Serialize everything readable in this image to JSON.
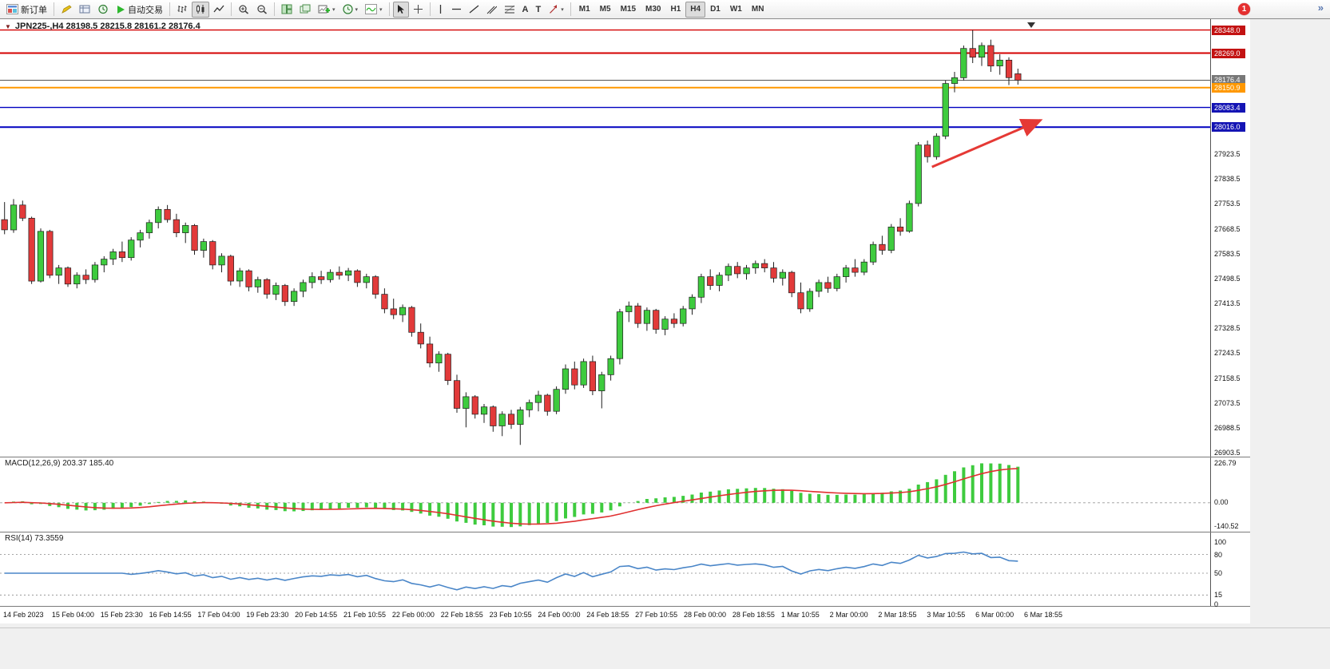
{
  "toolbar": {
    "new_order": "新订单",
    "autotrading": "自动交易",
    "timeframes": [
      "M1",
      "M5",
      "M15",
      "M30",
      "H1",
      "H4",
      "D1",
      "W1",
      "MN"
    ],
    "active_timeframe": "H4",
    "badge": "1"
  },
  "icons": {
    "one_click": "▼",
    "caret": "▾",
    "overflow": "»",
    "text_tool": "A",
    "label_tool": "T"
  },
  "chart": {
    "title": "JPN225-,H4 28198.5 28215.8 28161.2 28176.4"
  },
  "colors": {
    "bull": "#3ecb3e",
    "bear": "#e23a3a",
    "wick": "#1f1f1f"
  },
  "chart_data": {
    "type": "candlestick",
    "symbol": "JPN225-",
    "timeframe": "H4",
    "current_bar": {
      "open": 28198.5,
      "high": 28215.8,
      "low": 28161.2,
      "close": 28176.4
    },
    "price_axis": {
      "min": 26890,
      "max": 28385,
      "ticks": [
        27923.5,
        27838.5,
        27753.5,
        27668.5,
        27583.5,
        27498.5,
        27413.5,
        27328.5,
        27243.5,
        27158.5,
        27073.5,
        26988.5,
        26903.5
      ]
    },
    "hlines": [
      {
        "price": 28348.0,
        "label": "28348.0",
        "color": "#d40000",
        "badge": "#c31212",
        "width": 1.4,
        "name": "resistance-upper"
      },
      {
        "price": 28269.0,
        "label": "28269.0",
        "color": "#d40000",
        "badge": "#c31212",
        "width": 2,
        "name": "resistance-lower"
      },
      {
        "price": 28176.4,
        "label": "28176.4",
        "color": "#555555",
        "badge": "#787878",
        "width": 1.1,
        "name": "bid-price"
      },
      {
        "price": 28150.9,
        "label": "28150.9",
        "color": "#ff9800",
        "badge": "#ff9800",
        "width": 2,
        "name": "pivot"
      },
      {
        "price": 28083.4,
        "label": "28083.4",
        "color": "#0000c0",
        "badge": "#1414b4",
        "width": 1.4,
        "name": "support-upper"
      },
      {
        "price": 28016.0,
        "label": "28016.0",
        "color": "#0000c0",
        "badge": "#1414b4",
        "width": 2,
        "name": "support-lower"
      }
    ],
    "arrow": {
      "from_index": 102.5,
      "from_price": 27880,
      "to_index": 114.5,
      "to_price": 28040,
      "color": "#e53935"
    },
    "candles": [
      [
        27700,
        27760,
        27650,
        27665
      ],
      [
        27665,
        27770,
        27655,
        27750
      ],
      [
        27750,
        27765,
        27695,
        27705
      ],
      [
        27705,
        27710,
        27480,
        27490
      ],
      [
        27490,
        27670,
        27485,
        27660
      ],
      [
        27660,
        27665,
        27500,
        27510
      ],
      [
        27510,
        27545,
        27480,
        27535
      ],
      [
        27535,
        27540,
        27470,
        27480
      ],
      [
        27480,
        27520,
        27465,
        27510
      ],
      [
        27510,
        27530,
        27480,
        27495
      ],
      [
        27495,
        27555,
        27485,
        27545
      ],
      [
        27545,
        27575,
        27520,
        27565
      ],
      [
        27565,
        27600,
        27545,
        27590
      ],
      [
        27590,
        27625,
        27555,
        27570
      ],
      [
        27570,
        27640,
        27560,
        27630
      ],
      [
        27630,
        27665,
        27605,
        27655
      ],
      [
        27655,
        27700,
        27635,
        27690
      ],
      [
        27690,
        27745,
        27670,
        27735
      ],
      [
        27735,
        27750,
        27690,
        27700
      ],
      [
        27700,
        27720,
        27640,
        27655
      ],
      [
        27655,
        27690,
        27620,
        27680
      ],
      [
        27680,
        27685,
        27580,
        27595
      ],
      [
        27595,
        27635,
        27570,
        27625
      ],
      [
        27625,
        27630,
        27530,
        27545
      ],
      [
        27545,
        27585,
        27520,
        27575
      ],
      [
        27575,
        27580,
        27475,
        27490
      ],
      [
        27490,
        27535,
        27470,
        27525
      ],
      [
        27525,
        27530,
        27455,
        27470
      ],
      [
        27470,
        27505,
        27450,
        27495
      ],
      [
        27495,
        27500,
        27430,
        27445
      ],
      [
        27445,
        27485,
        27425,
        27475
      ],
      [
        27475,
        27480,
        27405,
        27420
      ],
      [
        27420,
        27465,
        27405,
        27455
      ],
      [
        27455,
        27495,
        27435,
        27485
      ],
      [
        27485,
        27520,
        27465,
        27505
      ],
      [
        27505,
        27525,
        27480,
        27495
      ],
      [
        27495,
        27530,
        27485,
        27520
      ],
      [
        27520,
        27540,
        27495,
        27510
      ],
      [
        27510,
        27535,
        27490,
        27525
      ],
      [
        27525,
        27530,
        27470,
        27485
      ],
      [
        27485,
        27515,
        27465,
        27505
      ],
      [
        27505,
        27510,
        27430,
        27445
      ],
      [
        27445,
        27465,
        27380,
        27395
      ],
      [
        27395,
        27430,
        27360,
        27375
      ],
      [
        27375,
        27410,
        27350,
        27400
      ],
      [
        27400,
        27405,
        27300,
        27315
      ],
      [
        27315,
        27345,
        27260,
        27275
      ],
      [
        27275,
        27300,
        27195,
        27210
      ],
      [
        27210,
        27250,
        27180,
        27240
      ],
      [
        27240,
        27245,
        27135,
        27150
      ],
      [
        27150,
        27170,
        27040,
        27055
      ],
      [
        27055,
        27110,
        26990,
        27095
      ],
      [
        27095,
        27100,
        27020,
        27035
      ],
      [
        27035,
        27070,
        27005,
        27060
      ],
      [
        27060,
        27065,
        26975,
        26995
      ],
      [
        26995,
        27045,
        26960,
        27035
      ],
      [
        27035,
        27050,
        26985,
        27000
      ],
      [
        27000,
        27060,
        26930,
        27050
      ],
      [
        27050,
        27085,
        27025,
        27075
      ],
      [
        27075,
        27115,
        27045,
        27100
      ],
      [
        27100,
        27105,
        27030,
        27045
      ],
      [
        27045,
        27130,
        27035,
        27120
      ],
      [
        27120,
        27205,
        27105,
        27190
      ],
      [
        27190,
        27215,
        27120,
        27135
      ],
      [
        27135,
        27225,
        27125,
        27215
      ],
      [
        27215,
        27235,
        27100,
        27115
      ],
      [
        27115,
        27180,
        27055,
        27170
      ],
      [
        27170,
        27235,
        27150,
        27225
      ],
      [
        27225,
        27395,
        27205,
        27385
      ],
      [
        27385,
        27420,
        27350,
        27405
      ],
      [
        27405,
        27415,
        27330,
        27345
      ],
      [
        27345,
        27400,
        27320,
        27390
      ],
      [
        27390,
        27395,
        27310,
        27325
      ],
      [
        27325,
        27370,
        27305,
        27360
      ],
      [
        27360,
        27380,
        27330,
        27345
      ],
      [
        27345,
        27405,
        27335,
        27395
      ],
      [
        27395,
        27445,
        27375,
        27435
      ],
      [
        27435,
        27515,
        27415,
        27505
      ],
      [
        27505,
        27530,
        27460,
        27475
      ],
      [
        27475,
        27520,
        27455,
        27510
      ],
      [
        27510,
        27550,
        27490,
        27540
      ],
      [
        27540,
        27555,
        27500,
        27515
      ],
      [
        27515,
        27545,
        27495,
        27535
      ],
      [
        27535,
        27560,
        27515,
        27550
      ],
      [
        27550,
        27565,
        27520,
        27535
      ],
      [
        27535,
        27555,
        27485,
        27500
      ],
      [
        27500,
        27530,
        27475,
        27520
      ],
      [
        27520,
        27525,
        27435,
        27450
      ],
      [
        27450,
        27485,
        27380,
        27395
      ],
      [
        27395,
        27465,
        27385,
        27455
      ],
      [
        27455,
        27495,
        27435,
        27485
      ],
      [
        27485,
        27505,
        27450,
        27465
      ],
      [
        27465,
        27515,
        27455,
        27505
      ],
      [
        27505,
        27545,
        27485,
        27535
      ],
      [
        27535,
        27565,
        27505,
        27520
      ],
      [
        27520,
        27565,
        27510,
        27555
      ],
      [
        27555,
        27625,
        27545,
        27615
      ],
      [
        27615,
        27645,
        27580,
        27595
      ],
      [
        27595,
        27685,
        27585,
        27675
      ],
      [
        27675,
        27705,
        27645,
        27660
      ],
      [
        27660,
        27765,
        27655,
        27755
      ],
      [
        27755,
        27965,
        27745,
        27955
      ],
      [
        27955,
        27970,
        27895,
        27915
      ],
      [
        27915,
        27995,
        27905,
        27985
      ],
      [
        27985,
        28175,
        27975,
        28165
      ],
      [
        28165,
        28205,
        28135,
        28185
      ],
      [
        28185,
        28295,
        28175,
        28285
      ],
      [
        28285,
        28348,
        28235,
        28255
      ],
      [
        28255,
        28305,
        28225,
        28295
      ],
      [
        28295,
        28315,
        28205,
        28225
      ],
      [
        28225,
        28265,
        28195,
        28245
      ],
      [
        28245,
        28255,
        28160,
        28185
      ],
      [
        28198.5,
        28215.8,
        28161.2,
        28176.4
      ]
    ],
    "time_labels": [
      "14 Feb 2023",
      "15 Feb 04:00",
      "15 Feb 23:30",
      "16 Feb 14:55",
      "17 Feb 04:00",
      "19 Feb 23:30",
      "20 Feb 14:55",
      "21 Feb 10:55",
      "22 Feb 00:00",
      "22 Feb 18:55",
      "23 Feb 10:55",
      "24 Feb 00:00",
      "24 Feb 18:55",
      "27 Feb 10:55",
      "28 Feb 00:00",
      "28 Feb 18:55",
      "1 Mar 10:55",
      "2 Mar 00:00",
      "2 Mar 18:55",
      "3 Mar 10:55",
      "6 Mar 00:00",
      "6 Mar 18:55"
    ]
  },
  "macd": {
    "label": "MACD(12,26,9) 203.37 185.40",
    "value_main": "203.37",
    "value_signal": "185.40",
    "scale_max": "226.79",
    "scale_zero": "0.00",
    "scale_min": "-140.52",
    "histogram_color": "#3ecb3e",
    "signal_color": "#e03030"
  },
  "rsi": {
    "label": "RSI(14) 73.3559",
    "value": "73.3559",
    "scale_labels": [
      "100",
      "80",
      "50",
      "15",
      "0"
    ],
    "levels": [
      80,
      50,
      15
    ],
    "line_color": "#4a86c8"
  }
}
